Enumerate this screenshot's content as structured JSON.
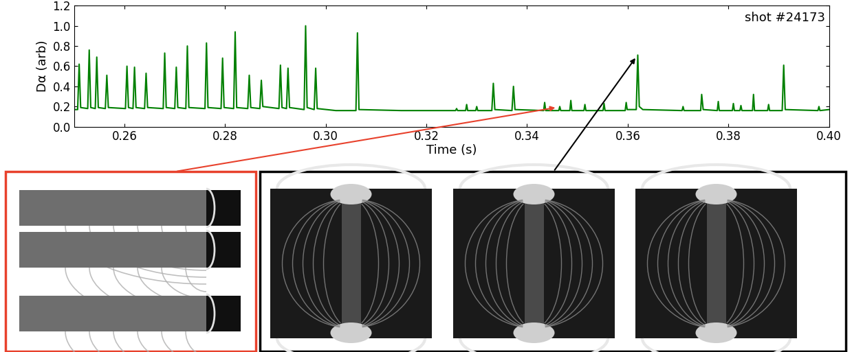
{
  "chart_data": {
    "type": "line",
    "annotation": "shot #24173",
    "x_label": "Time (s)",
    "y_label": "Dα (arb)",
    "color": "#008000",
    "xlim": [
      0.25,
      0.4
    ],
    "ylim": [
      0.0,
      1.2
    ],
    "xticks": [
      0.26,
      0.28,
      {
        "value": 0.3,
        "label": "0.30"
      },
      0.32,
      0.34,
      0.36,
      0.38,
      {
        "value": 0.4,
        "label": "0.40"
      }
    ],
    "yticks": [
      0.0,
      0.2,
      0.4,
      0.6,
      0.8,
      1.0,
      1.2
    ],
    "x": [
      0.25,
      0.2507,
      0.251,
      0.2513,
      0.2527,
      0.253,
      0.2533,
      0.2542,
      0.2545,
      0.2548,
      0.2562,
      0.2565,
      0.2568,
      0.2602,
      0.2605,
      0.2608,
      0.2617,
      0.262,
      0.2623,
      0.264,
      0.2643,
      0.2646,
      0.2677,
      0.268,
      0.2683,
      0.27,
      0.2703,
      0.2706,
      0.2722,
      0.2725,
      0.2728,
      0.276,
      0.2763,
      0.2766,
      0.2792,
      0.2795,
      0.2798,
      0.2817,
      0.282,
      0.2823,
      0.2845,
      0.2848,
      0.2851,
      0.2869,
      0.2872,
      0.2875,
      0.2907,
      0.291,
      0.2913,
      0.2922,
      0.2925,
      0.2928,
      0.2957,
      0.296,
      0.2963,
      0.2977,
      0.298,
      0.2983,
      0.302,
      0.306,
      0.3063,
      0.3066,
      0.315,
      0.325,
      0.3258,
      0.326,
      0.3262,
      0.3278,
      0.328,
      0.3282,
      0.3298,
      0.33,
      0.3302,
      0.333,
      0.3333,
      0.3336,
      0.337,
      0.3373,
      0.3376,
      0.3433,
      0.3435,
      0.3437,
      0.3463,
      0.3465,
      0.3467,
      0.3485,
      0.3487,
      0.3489,
      0.3513,
      0.3515,
      0.3517,
      0.3551,
      0.3553,
      0.3555,
      0.3595,
      0.3597,
      0.3599,
      0.3617,
      0.362,
      0.3623,
      0.363,
      0.3708,
      0.371,
      0.3712,
      0.3745,
      0.3747,
      0.375,
      0.3778,
      0.378,
      0.3782,
      0.3808,
      0.381,
      0.3812,
      0.3823,
      0.3825,
      0.3827,
      0.3848,
      0.385,
      0.3852,
      0.3878,
      0.388,
      0.3882,
      0.3907,
      0.391,
      0.3913,
      0.3978,
      0.398,
      0.3982,
      0.4
    ],
    "values": [
      0.17,
      0.17,
      0.62,
      0.19,
      0.18,
      0.76,
      0.19,
      0.18,
      0.69,
      0.19,
      0.18,
      0.51,
      0.19,
      0.18,
      0.6,
      0.19,
      0.18,
      0.59,
      0.19,
      0.18,
      0.53,
      0.19,
      0.18,
      0.73,
      0.19,
      0.18,
      0.59,
      0.19,
      0.18,
      0.8,
      0.19,
      0.18,
      0.83,
      0.19,
      0.18,
      0.68,
      0.19,
      0.18,
      0.94,
      0.19,
      0.18,
      0.51,
      0.19,
      0.18,
      0.46,
      0.2,
      0.18,
      0.61,
      0.19,
      0.18,
      0.58,
      0.19,
      0.17,
      1.0,
      0.19,
      0.17,
      0.58,
      0.18,
      0.16,
      0.16,
      0.93,
      0.17,
      0.16,
      0.16,
      0.16,
      0.18,
      0.16,
      0.16,
      0.22,
      0.16,
      0.16,
      0.2,
      0.16,
      0.16,
      0.43,
      0.17,
      0.16,
      0.4,
      0.17,
      0.16,
      0.24,
      0.16,
      0.16,
      0.2,
      0.16,
      0.16,
      0.26,
      0.16,
      0.16,
      0.22,
      0.16,
      0.16,
      0.23,
      0.16,
      0.16,
      0.24,
      0.17,
      0.17,
      0.71,
      0.2,
      0.17,
      0.16,
      0.2,
      0.16,
      0.16,
      0.32,
      0.17,
      0.16,
      0.25,
      0.16,
      0.16,
      0.23,
      0.16,
      0.16,
      0.21,
      0.16,
      0.16,
      0.32,
      0.16,
      0.16,
      0.22,
      0.16,
      0.16,
      0.61,
      0.17,
      0.16,
      0.2,
      0.16,
      0.17
    ]
  }
}
